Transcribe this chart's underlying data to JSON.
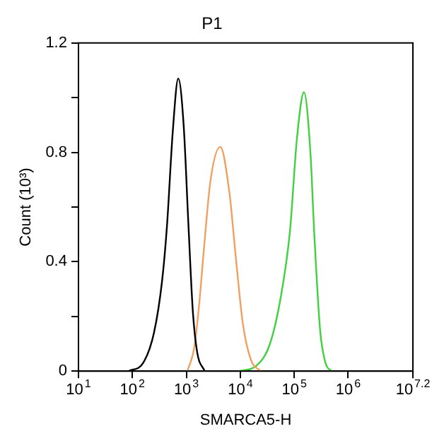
{
  "chart_data": {
    "type": "line",
    "title": "P1",
    "xlabel": "SMARCA5-H",
    "ylabel": "Count (10³)",
    "log": "x",
    "grid": false,
    "legend": false,
    "marker": "none",
    "line_style": "solid",
    "xlim": [
      10,
      15848932
    ],
    "ylim": [
      0,
      1.2
    ],
    "xticks": [
      {
        "value": 10,
        "label": "10$^{1}$"
      },
      {
        "value": 100,
        "label": "10$^{2}$"
      },
      {
        "value": 1000,
        "label": "10$^{3}$"
      },
      {
        "value": 10000,
        "label": "10$^{4}$"
      },
      {
        "value": 100000,
        "label": "10$^{5}$"
      },
      {
        "value": 1000000,
        "label": "10$^{6}$"
      },
      {
        "value": 15848932,
        "label": "10$^{7.2}$"
      }
    ],
    "yticks": [
      0,
      {
        "value": 0.2,
        "label": null
      },
      0.4,
      {
        "value": 0.6,
        "label": null
      },
      0.8,
      {
        "value": 1.0,
        "label": null
      },
      1.2
    ],
    "series": [
      {
        "color": "#000000",
        "x": [
          85,
          158,
          251,
          355,
          437,
          562,
          708,
          891,
          1096,
          1318,
          1585,
          2188
        ],
        "values": [
          0,
          0.03,
          0.14,
          0.33,
          0.53,
          0.88,
          1.07,
          0.9,
          0.53,
          0.22,
          0.07,
          0
        ]
      },
      {
        "color": "#f0a060",
        "x": [
          1047,
          1413,
          1778,
          2042,
          2818,
          4266,
          6310,
          8318,
          11220,
          15849,
          23988
        ],
        "values": [
          0,
          0.09,
          0.27,
          0.41,
          0.7,
          0.82,
          0.65,
          0.41,
          0.17,
          0.04,
          0
        ]
      },
      {
        "color": "#40d040",
        "x": [
          9550,
          19953,
          35481,
          56234,
          83176,
          112202,
          151356,
          199526,
          234423,
          301995,
          380189,
          501187
        ],
        "values": [
          0,
          0.02,
          0.1,
          0.27,
          0.51,
          0.85,
          1.02,
          0.8,
          0.51,
          0.15,
          0.03,
          0
        ]
      }
    ]
  }
}
